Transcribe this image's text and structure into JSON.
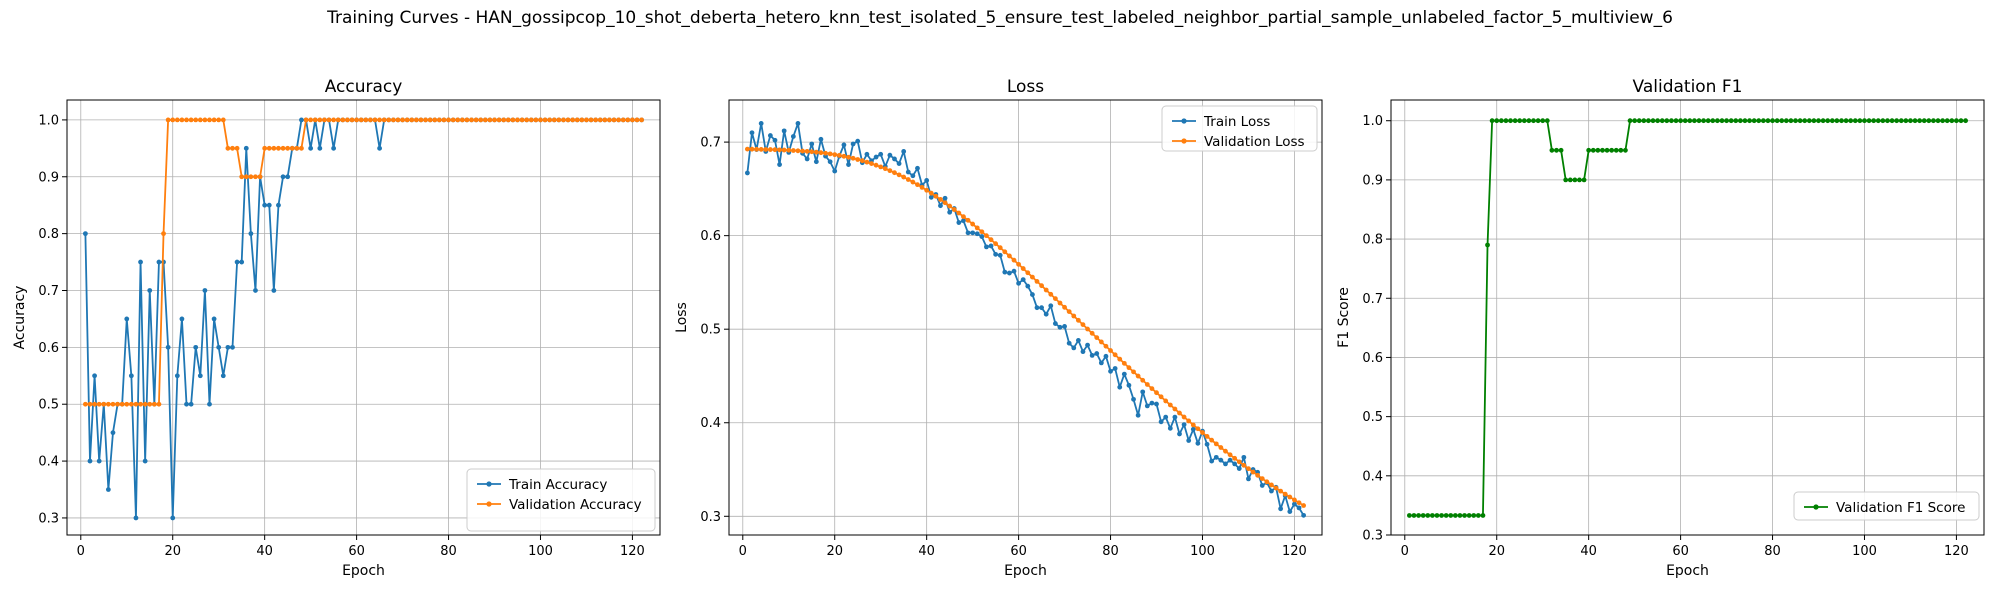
{
  "figure": {
    "suptitle": "Training Curves - HAN_gossipcop_10_shot_deberta_hetero_knn_test_isolated_5_ensure_test_labeled_neighbor_partial_sample_unlabeled_factor_5_multiview_6"
  },
  "chart_data": [
    {
      "type": "line",
      "title": "Accuracy",
      "xlabel": "Epoch",
      "ylabel": "Accuracy",
      "xlim": [
        -3,
        126
      ],
      "ylim": [
        0.27,
        1.035
      ],
      "xticks": [
        0,
        20,
        40,
        60,
        80,
        100,
        120
      ],
      "yticks": [
        0.3,
        0.4,
        0.5,
        0.6,
        0.7,
        0.8,
        0.9,
        1.0
      ],
      "ytick_labels": [
        "0.3",
        "0.4",
        "0.5",
        "0.6",
        "0.7",
        "0.8",
        "0.9",
        "1.0"
      ],
      "grid": true,
      "legend_position": "lower-right",
      "series": [
        {
          "name": "Train Accuracy",
          "color": "#1f77b4",
          "x_start": 1,
          "values": [
            0.8,
            0.4,
            0.55,
            0.4,
            0.5,
            0.35,
            0.45,
            0.5,
            0.5,
            0.65,
            0.55,
            0.3,
            0.75,
            0.4,
            0.7,
            0.5,
            0.75,
            0.75,
            0.6,
            0.3,
            0.55,
            0.65,
            0.5,
            0.5,
            0.6,
            0.55,
            0.7,
            0.5,
            0.65,
            0.6,
            0.55,
            0.6,
            0.6,
            0.75,
            0.75,
            0.95,
            0.8,
            0.7,
            0.9,
            0.85,
            0.85,
            0.7,
            0.85,
            0.9,
            0.9,
            0.95,
            0.95,
            1.0,
            1.0,
            0.95,
            1.0,
            0.95,
            1.0,
            1.0,
            0.95,
            1.0,
            1.0,
            1.0,
            1.0,
            1.0,
            1.0,
            1.0,
            1.0,
            1.0,
            0.95,
            1.0,
            1.0,
            1.0,
            1.0,
            1.0,
            1.0,
            1.0,
            1.0,
            1.0,
            1.0,
            1.0,
            1.0,
            1.0,
            1.0,
            1.0,
            1.0,
            1.0,
            1.0,
            1.0,
            1.0,
            1.0,
            1.0,
            1.0,
            1.0,
            1.0,
            1.0,
            1.0,
            1.0,
            1.0,
            1.0,
            1.0,
            1.0,
            1.0,
            1.0,
            1.0,
            1.0,
            1.0,
            1.0,
            1.0,
            1.0,
            1.0,
            1.0,
            1.0,
            1.0,
            1.0,
            1.0,
            1.0,
            1.0,
            1.0,
            1.0,
            1.0,
            1.0,
            1.0,
            1.0,
            1.0,
            1.0,
            1.0
          ]
        },
        {
          "name": "Validation Accuracy",
          "color": "#ff7f0e",
          "x_start": 1,
          "values": [
            0.5,
            0.5,
            0.5,
            0.5,
            0.5,
            0.5,
            0.5,
            0.5,
            0.5,
            0.5,
            0.5,
            0.5,
            0.5,
            0.5,
            0.5,
            0.5,
            0.5,
            0.8,
            1.0,
            1.0,
            1.0,
            1.0,
            1.0,
            1.0,
            1.0,
            1.0,
            1.0,
            1.0,
            1.0,
            1.0,
            1.0,
            0.95,
            0.95,
            0.95,
            0.9,
            0.9,
            0.9,
            0.9,
            0.9,
            0.95,
            0.95,
            0.95,
            0.95,
            0.95,
            0.95,
            0.95,
            0.95,
            0.95,
            1.0,
            1.0,
            1.0,
            1.0,
            1.0,
            1.0,
            1.0,
            1.0,
            1.0,
            1.0,
            1.0,
            1.0,
            1.0,
            1.0,
            1.0,
            1.0,
            1.0,
            1.0,
            1.0,
            1.0,
            1.0,
            1.0,
            1.0,
            1.0,
            1.0,
            1.0,
            1.0,
            1.0,
            1.0,
            1.0,
            1.0,
            1.0,
            1.0,
            1.0,
            1.0,
            1.0,
            1.0,
            1.0,
            1.0,
            1.0,
            1.0,
            1.0,
            1.0,
            1.0,
            1.0,
            1.0,
            1.0,
            1.0,
            1.0,
            1.0,
            1.0,
            1.0,
            1.0,
            1.0,
            1.0,
            1.0,
            1.0,
            1.0,
            1.0,
            1.0,
            1.0,
            1.0,
            1.0,
            1.0,
            1.0,
            1.0,
            1.0,
            1.0,
            1.0,
            1.0,
            1.0,
            1.0,
            1.0,
            1.0
          ]
        }
      ]
    },
    {
      "type": "line",
      "title": "Loss",
      "xlabel": "Epoch",
      "ylabel": "Loss",
      "xlim": [
        -3,
        126
      ],
      "ylim": [
        0.28,
        0.745
      ],
      "xticks": [
        0,
        20,
        40,
        60,
        80,
        100,
        120
      ],
      "yticks": [
        0.3,
        0.4,
        0.5,
        0.6,
        0.7
      ],
      "ytick_labels": [
        "0.3",
        "0.4",
        "0.5",
        "0.6",
        "0.7"
      ],
      "grid": true,
      "legend_position": "upper-right",
      "series": [
        {
          "name": "Train Loss",
          "color": "#1f77b4",
          "x_start": 1,
          "values": [
            0.667,
            0.71,
            0.692,
            0.72,
            0.69,
            0.707,
            0.702,
            0.676,
            0.712,
            0.689,
            0.706,
            0.72,
            0.688,
            0.682,
            0.698,
            0.679,
            0.703,
            0.685,
            0.679,
            0.669,
            0.685,
            0.697,
            0.676,
            0.698,
            0.701,
            0.678,
            0.687,
            0.68,
            0.684,
            0.687,
            0.674,
            0.686,
            0.682,
            0.677,
            0.69,
            0.668,
            0.664,
            0.672,
            0.654,
            0.659,
            0.641,
            0.644,
            0.632,
            0.64,
            0.625,
            0.629,
            0.614,
            0.616,
            0.603,
            0.603,
            0.602,
            0.599,
            0.588,
            0.589,
            0.58,
            0.579,
            0.561,
            0.56,
            0.562,
            0.549,
            0.553,
            0.546,
            0.537,
            0.523,
            0.523,
            0.516,
            0.525,
            0.506,
            0.502,
            0.503,
            0.485,
            0.48,
            0.488,
            0.476,
            0.483,
            0.472,
            0.474,
            0.464,
            0.471,
            0.455,
            0.458,
            0.438,
            0.452,
            0.44,
            0.425,
            0.408,
            0.433,
            0.418,
            0.421,
            0.42,
            0.401,
            0.406,
            0.394,
            0.406,
            0.388,
            0.398,
            0.381,
            0.393,
            0.378,
            0.391,
            0.377,
            0.359,
            0.363,
            0.36,
            0.356,
            0.36,
            0.356,
            0.351,
            0.363,
            0.34,
            0.35,
            0.347,
            0.333,
            0.336,
            0.327,
            0.331,
            0.308,
            0.322,
            0.305,
            0.313,
            0.309,
            0.301
          ]
        },
        {
          "name": "Validation Loss",
          "color": "#ff7f0e",
          "x_start": 1,
          "values": [
            0.6925,
            0.6924,
            0.6923,
            0.6922,
            0.6921,
            0.692,
            0.6919,
            0.6917,
            0.6915,
            0.6913,
            0.691,
            0.6907,
            0.6904,
            0.6901,
            0.6897,
            0.6892,
            0.6887,
            0.6881,
            0.6874,
            0.6866,
            0.6858,
            0.6848,
            0.6838,
            0.6827,
            0.6814,
            0.6801,
            0.6786,
            0.677,
            0.6753,
            0.6735,
            0.6716,
            0.6695,
            0.6673,
            0.665,
            0.6626,
            0.66,
            0.6573,
            0.6545,
            0.6516,
            0.6485,
            0.6454,
            0.6421,
            0.6387,
            0.6352,
            0.6316,
            0.6279,
            0.6242,
            0.6203,
            0.6164,
            0.6124,
            0.6083,
            0.6042,
            0.6,
            0.5957,
            0.5914,
            0.5871,
            0.5827,
            0.5783,
            0.5738,
            0.5693,
            0.5648,
            0.5603,
            0.5557,
            0.5511,
            0.5465,
            0.5419,
            0.5373,
            0.5327,
            0.528,
            0.5234,
            0.5188,
            0.5141,
            0.5095,
            0.5049,
            0.5002,
            0.4956,
            0.491,
            0.4864,
            0.4818,
            0.4772,
            0.4726,
            0.468,
            0.4635,
            0.4589,
            0.4544,
            0.4499,
            0.4454,
            0.4409,
            0.4365,
            0.4321,
            0.4277,
            0.4233,
            0.419,
            0.4147,
            0.4104,
            0.4061,
            0.4019,
            0.3977,
            0.3936,
            0.3895,
            0.3854,
            0.3814,
            0.3774,
            0.3735,
            0.3696,
            0.3658,
            0.362,
            0.3582,
            0.3545,
            0.3509,
            0.3473,
            0.3438,
            0.3403,
            0.3369,
            0.3335,
            0.3302,
            0.3269,
            0.3237,
            0.3206,
            0.3175,
            0.3145,
            0.3115
          ]
        }
      ]
    },
    {
      "type": "line",
      "title": "Validation F1",
      "xlabel": "Epoch",
      "ylabel": "F1 Score",
      "xlim": [
        -3,
        126
      ],
      "ylim": [
        0.3,
        1.035
      ],
      "xticks": [
        0,
        20,
        40,
        60,
        80,
        100,
        120
      ],
      "yticks": [
        0.3,
        0.4,
        0.5,
        0.6,
        0.7,
        0.8,
        0.9,
        1.0
      ],
      "ytick_labels": [
        "0.3",
        "0.4",
        "0.5",
        "0.6",
        "0.7",
        "0.8",
        "0.9",
        "1.0"
      ],
      "grid": true,
      "legend_position": "lower-right",
      "series": [
        {
          "name": "Validation F1 Score",
          "color": "#008000",
          "x_start": 1,
          "values": [
            0.333,
            0.333,
            0.333,
            0.333,
            0.333,
            0.333,
            0.333,
            0.333,
            0.333,
            0.333,
            0.333,
            0.333,
            0.333,
            0.333,
            0.333,
            0.333,
            0.333,
            0.79,
            1.0,
            1.0,
            1.0,
            1.0,
            1.0,
            1.0,
            1.0,
            1.0,
            1.0,
            1.0,
            1.0,
            1.0,
            1.0,
            0.95,
            0.95,
            0.95,
            0.9,
            0.9,
            0.9,
            0.9,
            0.9,
            0.95,
            0.95,
            0.95,
            0.95,
            0.95,
            0.95,
            0.95,
            0.95,
            0.95,
            1.0,
            1.0,
            1.0,
            1.0,
            1.0,
            1.0,
            1.0,
            1.0,
            1.0,
            1.0,
            1.0,
            1.0,
            1.0,
            1.0,
            1.0,
            1.0,
            1.0,
            1.0,
            1.0,
            1.0,
            1.0,
            1.0,
            1.0,
            1.0,
            1.0,
            1.0,
            1.0,
            1.0,
            1.0,
            1.0,
            1.0,
            1.0,
            1.0,
            1.0,
            1.0,
            1.0,
            1.0,
            1.0,
            1.0,
            1.0,
            1.0,
            1.0,
            1.0,
            1.0,
            1.0,
            1.0,
            1.0,
            1.0,
            1.0,
            1.0,
            1.0,
            1.0,
            1.0,
            1.0,
            1.0,
            1.0,
            1.0,
            1.0,
            1.0,
            1.0,
            1.0,
            1.0,
            1.0,
            1.0,
            1.0,
            1.0,
            1.0,
            1.0,
            1.0,
            1.0,
            1.0,
            1.0,
            1.0,
            1.0
          ]
        }
      ]
    }
  ]
}
